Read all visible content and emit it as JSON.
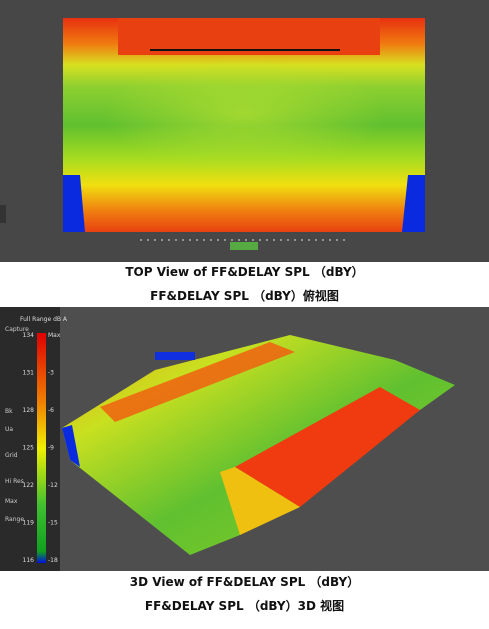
{
  "figures": [
    {
      "caption": [
        "TOP View of FF&DELAY SPL （dBY）",
        "FF&DELAY SPL （dBY）俯视图"
      ]
    },
    {
      "caption": [
        "3D View of FF&DELAY SPL （dBY）",
        "FF&DELAY SPL （dBY）3D 视图"
      ],
      "panel": {
        "title": "Full Range dB A",
        "labels": [
          "Capture",
          "Bk",
          "Ua",
          "Grid",
          "Hi Res",
          "Max",
          "Range"
        ],
        "scale_left": [
          134,
          131,
          128,
          125,
          122,
          119,
          116
        ],
        "scale_right": [
          "Max",
          -3,
          -6,
          -9,
          -12,
          -15,
          -18
        ]
      }
    }
  ]
}
